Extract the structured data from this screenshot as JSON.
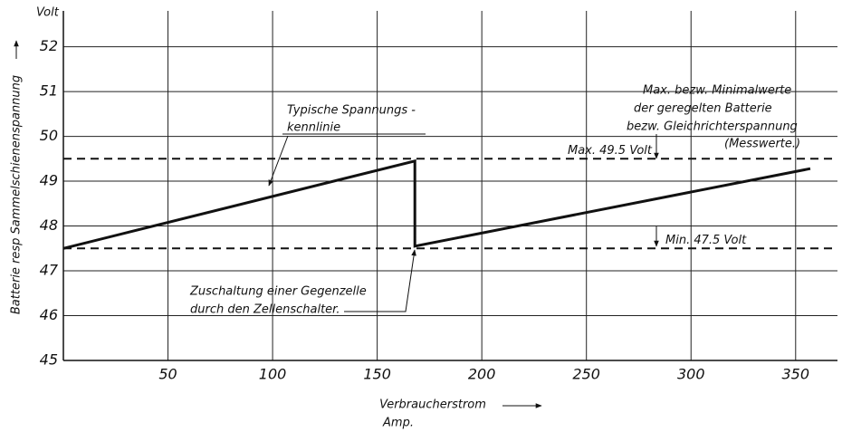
{
  "chart_data": {
    "type": "line",
    "ylabel": "Batterie resp Sammelschienenspannung",
    "yunit": "Volt",
    "xlabel": "Verbraucherstrom",
    "xunit": "Amp.",
    "xlim": [
      0,
      370
    ],
    "xticks": [
      50,
      100,
      150,
      200,
      250,
      300,
      350
    ],
    "ylim": [
      45,
      52.8
    ],
    "yticks": [
      45,
      46,
      47,
      48,
      49,
      50,
      51,
      52
    ],
    "grid": true,
    "series": [
      {
        "name": "Typische Spannungskennlinie",
        "color": "#111111",
        "x": [
          0,
          168,
          168,
          357
        ],
        "y": [
          47.5,
          49.45,
          47.55,
          49.28
        ]
      }
    ],
    "reference_lines": [
      {
        "value": 49.5,
        "label": "Max. 49.5 Volt"
      },
      {
        "value": 47.5,
        "label": "Min. 47.5 Volt"
      }
    ],
    "annotations": {
      "curve": [
        "Typische Spannungs -",
        "kennlinie"
      ],
      "switch": [
        "Zuschaltung einer Gegenzelle",
        "durch den Zellenschalter."
      ],
      "limits": [
        "Max. bezw. Minimalwerte",
        "der geregelten Batterie",
        "bezw. Gleichrichterspannung",
        "(Messwerte.)"
      ]
    }
  }
}
